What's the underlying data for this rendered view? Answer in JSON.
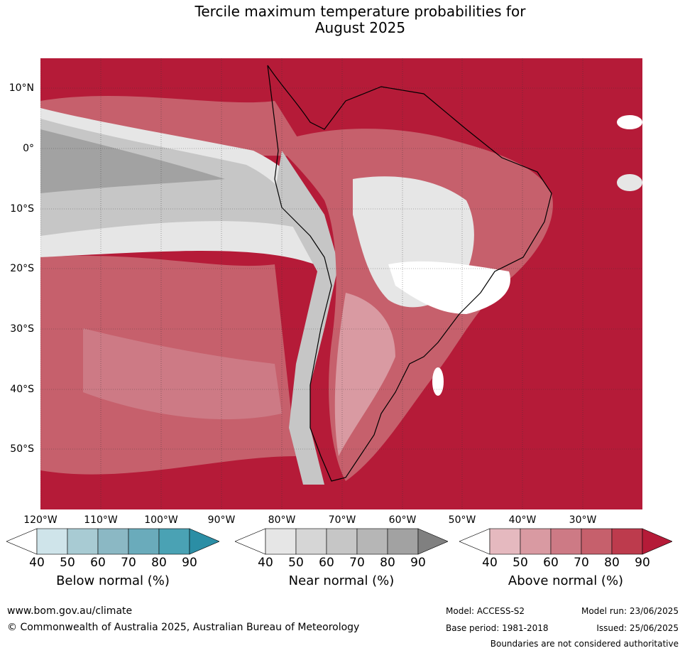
{
  "title_line1": "Tercile maximum temperature probabilities for",
  "title_line2": "August 2025",
  "lat_labels": [
    "10°N",
    "0°",
    "10°S",
    "20°S",
    "30°S",
    "40°S",
    "50°S"
  ],
  "lon_labels": [
    "120°W",
    "110°W",
    "100°W",
    "90°W",
    "80°W",
    "70°W",
    "60°W",
    "50°W",
    "40°W",
    "30°W"
  ],
  "colorbars": {
    "below": {
      "title": "Below normal (%)",
      "ticks": [
        "40",
        "50",
        "60",
        "70",
        "80",
        "90"
      ],
      "colors": [
        "#ffffff",
        "#cfe4ea",
        "#a8cbd3",
        "#8bb8c4",
        "#6aabbb",
        "#4aa2b4",
        "#2b8ea5"
      ]
    },
    "near": {
      "title": "Near normal (%)",
      "ticks": [
        "40",
        "50",
        "60",
        "70",
        "80",
        "90"
      ],
      "colors": [
        "#ffffff",
        "#e6e6e6",
        "#d6d6d6",
        "#c6c6c6",
        "#b6b6b6",
        "#a2a2a2",
        "#808080"
      ]
    },
    "above": {
      "title": "Above normal (%)",
      "ticks": [
        "40",
        "50",
        "60",
        "70",
        "80",
        "90"
      ],
      "colors": [
        "#ffffff",
        "#e5b9bf",
        "#d99aa2",
        "#cd7a85",
        "#c6606c",
        "#bd3b4d",
        "#b51b38"
      ]
    }
  },
  "footer": {
    "website": "www.bom.gov.au/climate",
    "copyright": "© Commonwealth of Australia 2025, Australian Bureau of Meteorology",
    "model": "Model: ACCESS-S2",
    "base_period": "Base period: 1981-2018",
    "model_run": "Model run: 23/06/2025",
    "issued": "Issued: 25/06/2025",
    "disclaimer": "Boundaries are not considered authoritative"
  }
}
